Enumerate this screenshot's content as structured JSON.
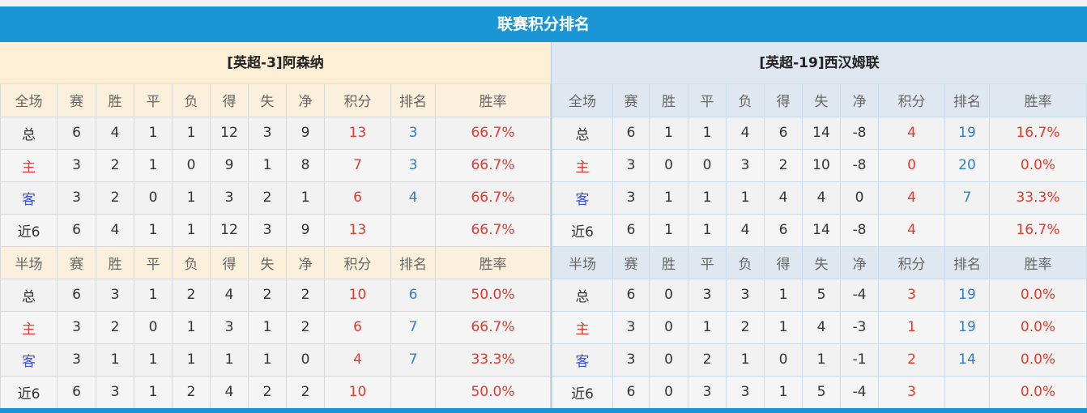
{
  "title": "联赛积分排名",
  "colors": {
    "accent": "#1a96d4",
    "points": "#e8382b",
    "rank": "#2d7fd0"
  },
  "teams": [
    {
      "name": "[英超-3]阿森纳",
      "full": {
        "header": [
          "全场",
          "赛",
          "胜",
          "平",
          "负",
          "得",
          "失",
          "净",
          "积分",
          "排名",
          "胜率"
        ],
        "rows": [
          [
            "总",
            "6",
            "4",
            "1",
            "1",
            "12",
            "3",
            "9",
            "13",
            "3",
            "66.7%"
          ],
          [
            "主",
            "3",
            "2",
            "1",
            "0",
            "9",
            "1",
            "8",
            "7",
            "3",
            "66.7%"
          ],
          [
            "客",
            "3",
            "2",
            "0",
            "1",
            "3",
            "2",
            "1",
            "6",
            "4",
            "66.7%"
          ],
          [
            "近6",
            "6",
            "4",
            "1",
            "1",
            "12",
            "3",
            "9",
            "13",
            "",
            "66.7%"
          ]
        ]
      },
      "half": {
        "header": [
          "半场",
          "赛",
          "胜",
          "平",
          "负",
          "得",
          "失",
          "净",
          "积分",
          "排名",
          "胜率"
        ],
        "rows": [
          [
            "总",
            "6",
            "3",
            "1",
            "2",
            "4",
            "2",
            "2",
            "10",
            "6",
            "50.0%"
          ],
          [
            "主",
            "3",
            "2",
            "0",
            "1",
            "3",
            "1",
            "2",
            "6",
            "7",
            "66.7%"
          ],
          [
            "客",
            "3",
            "1",
            "1",
            "1",
            "1",
            "1",
            "0",
            "4",
            "7",
            "33.3%"
          ],
          [
            "近6",
            "6",
            "3",
            "1",
            "2",
            "4",
            "2",
            "2",
            "10",
            "",
            "50.0%"
          ]
        ]
      }
    },
    {
      "name": "[英超-19]西汉姆联",
      "full": {
        "header": [
          "全场",
          "赛",
          "胜",
          "平",
          "负",
          "得",
          "失",
          "净",
          "积分",
          "排名",
          "胜率"
        ],
        "rows": [
          [
            "总",
            "6",
            "1",
            "1",
            "4",
            "6",
            "14",
            "-8",
            "4",
            "19",
            "16.7%"
          ],
          [
            "主",
            "3",
            "0",
            "0",
            "3",
            "2",
            "10",
            "-8",
            "0",
            "20",
            "0.0%"
          ],
          [
            "客",
            "3",
            "1",
            "1",
            "1",
            "4",
            "4",
            "0",
            "4",
            "7",
            "33.3%"
          ],
          [
            "近6",
            "6",
            "1",
            "1",
            "4",
            "6",
            "14",
            "-8",
            "4",
            "",
            "16.7%"
          ]
        ]
      },
      "half": {
        "header": [
          "半场",
          "赛",
          "胜",
          "平",
          "负",
          "得",
          "失",
          "净",
          "积分",
          "排名",
          "胜率"
        ],
        "rows": [
          [
            "总",
            "6",
            "0",
            "3",
            "3",
            "1",
            "5",
            "-4",
            "3",
            "19",
            "0.0%"
          ],
          [
            "主",
            "3",
            "0",
            "1",
            "2",
            "1",
            "4",
            "-3",
            "1",
            "19",
            "0.0%"
          ],
          [
            "客",
            "3",
            "0",
            "2",
            "1",
            "0",
            "1",
            "-1",
            "2",
            "14",
            "0.0%"
          ],
          [
            "近6",
            "6",
            "0",
            "3",
            "3",
            "1",
            "5",
            "-4",
            "3",
            "",
            "0.0%"
          ]
        ]
      }
    }
  ]
}
